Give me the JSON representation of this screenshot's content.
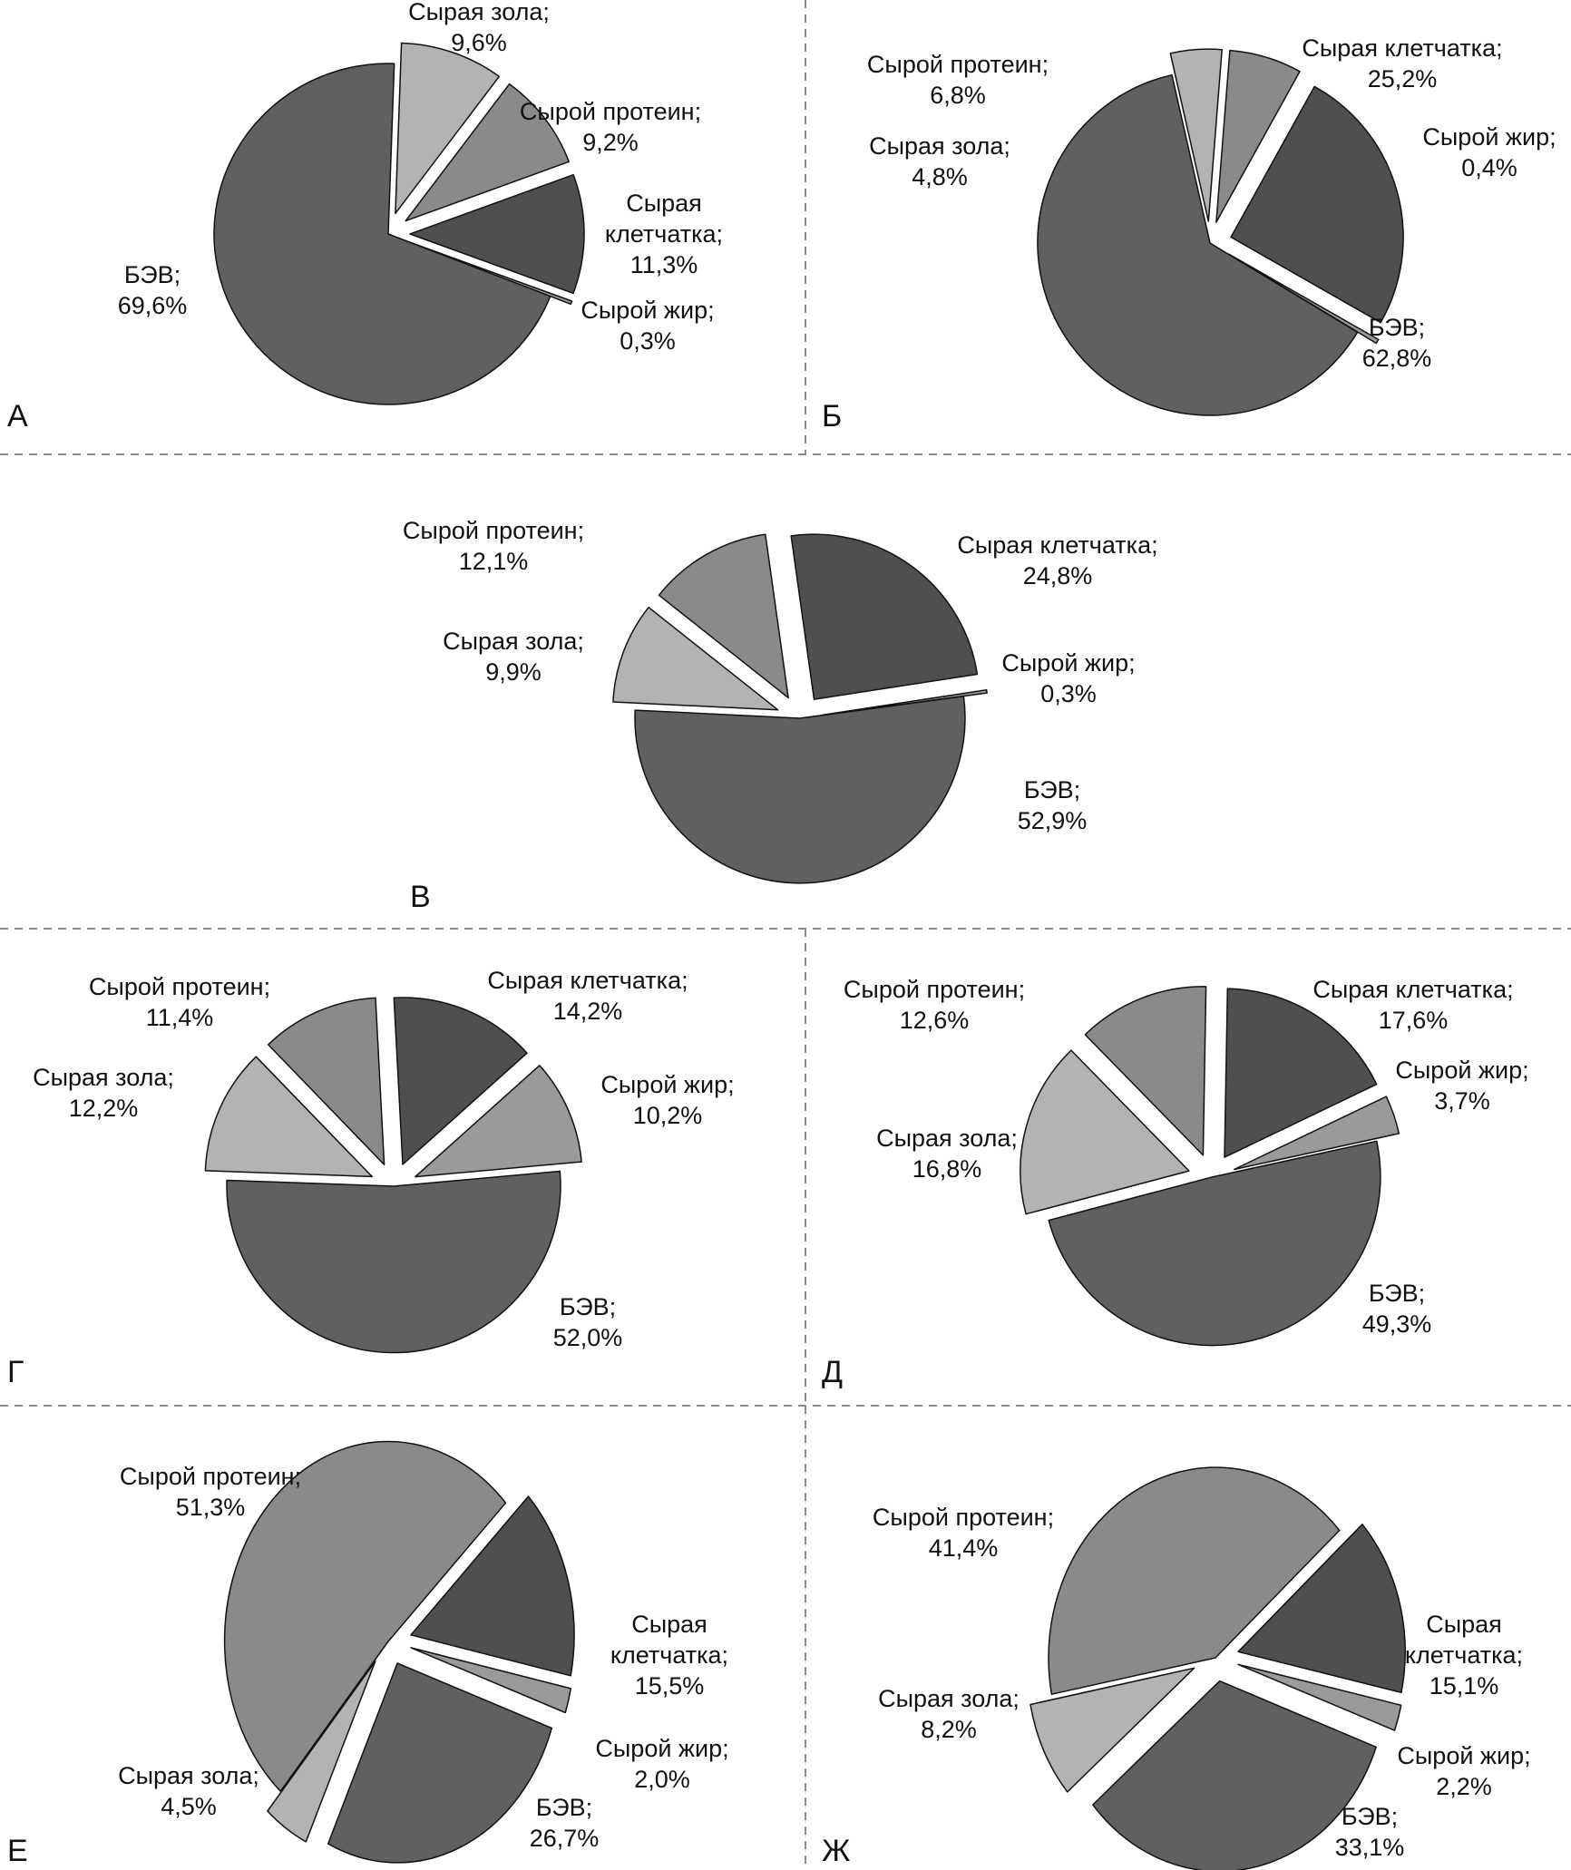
{
  "figure": {
    "panels": [
      "А",
      "Б",
      "В",
      "Г",
      "Д",
      "Е",
      "Ж"
    ]
  },
  "colors": {
    "БЭВ": "#606060",
    "Сырая клетчатка": "#4f4f4f",
    "Сырой протеин": "#8a8a8a",
    "Сырая зола": "#b3b3b3",
    "Сырой жир": "#9a9a9a",
    "Сырой жир (Г)": "#9a9a9a"
  },
  "chart_data": [
    {
      "type": "pie",
      "panel": "А",
      "title": "",
      "categories": [
        "Сырая зола",
        "Сырой протеин",
        "Сырая клетчатка",
        "Сырой жир",
        "БЭВ"
      ],
      "values": [
        9.6,
        9.2,
        11.3,
        0.3,
        69.6
      ],
      "labels": [
        [
          "Сырая зола;",
          "9,6%"
        ],
        [
          "Сырой протеин;",
          "9,2%"
        ],
        [
          "Сырая",
          "клетчатка;",
          "11,3%"
        ],
        [
          "Сырой жир;",
          "0,3%"
        ],
        [
          "БЭВ;",
          "69,6%"
        ]
      ],
      "exploded": [
        "Сырая зола",
        "Сырой протеин",
        "Сырая клетчатка",
        "Сырой жир"
      ]
    },
    {
      "type": "pie",
      "panel": "Б",
      "title": "",
      "categories": [
        "Сырая клетчатка",
        "Сырой жир",
        "БЭВ",
        "Сырая зола",
        "Сырой протеин"
      ],
      "values": [
        25.2,
        0.4,
        62.8,
        4.8,
        6.8
      ],
      "labels": [
        [
          "Сырая клетчатка;",
          "25,2%"
        ],
        [
          "Сырой жир;",
          "0,4%"
        ],
        [
          "БЭВ;",
          "62,8%"
        ],
        [
          "Сырая зола;",
          "4,8%"
        ],
        [
          "Сырой протеин;",
          "6,8%"
        ]
      ],
      "exploded": [
        "Сырая клетчатка",
        "Сырой жир",
        "Сырая зола",
        "Сырой протеин"
      ]
    },
    {
      "type": "pie",
      "panel": "В",
      "title": "",
      "categories": [
        "Сырая клетчатка",
        "Сырой жир",
        "БЭВ",
        "Сырая зола",
        "Сырой протеин"
      ],
      "values": [
        24.8,
        0.3,
        52.9,
        9.9,
        12.1
      ],
      "labels": [
        [
          "Сырая клетчатка;",
          "24,8%"
        ],
        [
          "Сырой жир;",
          "0,3%"
        ],
        [
          "БЭВ;",
          "52,9%"
        ],
        [
          "Сырая зола;",
          "9,9%"
        ],
        [
          "Сырой протеин;",
          "12,1%"
        ]
      ],
      "exploded": [
        "Сырая клетчатка",
        "Сырой жир",
        "Сырая зола",
        "Сырой протеин"
      ]
    },
    {
      "type": "pie",
      "panel": "Г",
      "title": "",
      "categories": [
        "Сырая клетчатка",
        "Сырой жир",
        "БЭВ",
        "Сырая зола",
        "Сырой протеин"
      ],
      "values": [
        14.2,
        10.2,
        52.0,
        12.2,
        11.4
      ],
      "labels": [
        [
          "Сырая клетчатка;",
          "14,2%"
        ],
        [
          "Сырой жир;",
          "10,2%"
        ],
        [
          "БЭВ;",
          "52,0%"
        ],
        [
          "Сырая зола;",
          "12,2%"
        ],
        [
          "Сырой протеин;",
          "11,4%"
        ]
      ],
      "exploded": [
        "Сырая клетчатка",
        "Сырой жир",
        "Сырая зола",
        "Сырой протеин"
      ]
    },
    {
      "type": "pie",
      "panel": "Д",
      "title": "",
      "categories": [
        "Сырая клетчатка",
        "Сырой жир",
        "БЭВ",
        "Сырая зола",
        "Сырой протеин"
      ],
      "values": [
        17.6,
        3.7,
        49.3,
        16.8,
        12.6
      ],
      "labels": [
        [
          "Сырая клетчатка;",
          "17,6%"
        ],
        [
          "Сырой жир;",
          "3,7%"
        ],
        [
          "БЭВ;",
          "49,3%"
        ],
        [
          "Сырая зола;",
          "16,8%"
        ],
        [
          "Сырой протеин;",
          "12,6%"
        ]
      ],
      "exploded": [
        "Сырая клетчатка",
        "Сырой жир",
        "Сырая зола",
        "Сырой протеин"
      ]
    },
    {
      "type": "pie",
      "panel": "Е",
      "title": "",
      "categories": [
        "Сырая клетчатка",
        "Сырой жир",
        "БЭВ",
        "Сырая зола",
        "Сырой протеин"
      ],
      "values": [
        15.5,
        2.0,
        26.7,
        4.5,
        51.3
      ],
      "labels": [
        [
          "Сырая",
          "клетчатка;",
          "15,5%"
        ],
        [
          "Сырой жир;",
          "2,0%"
        ],
        [
          "БЭВ;",
          "26,7%"
        ],
        [
          "Сырая зола;",
          "4,5%"
        ],
        [
          "Сырой протеин;",
          "51,3%"
        ]
      ],
      "exploded": [
        "Сырая клетчатка",
        "Сырой жир",
        "БЭВ",
        "Сырая зола"
      ]
    },
    {
      "type": "pie",
      "panel": "Ж",
      "title": "",
      "categories": [
        "Сырая клетчатка",
        "Сырой жир",
        "БЭВ",
        "Сырая зола",
        "Сырой протеин"
      ],
      "values": [
        15.1,
        2.2,
        33.1,
        8.2,
        41.4
      ],
      "labels": [
        [
          "Сырая",
          "клетчатка;",
          "15,1%"
        ],
        [
          "Сырой жир;",
          "2,2%"
        ],
        [
          "БЭВ;",
          "33,1%"
        ],
        [
          "Сырая зола;",
          "8,2%"
        ],
        [
          "Сырой протеин;",
          "41,4%"
        ]
      ],
      "exploded": [
        "Сырая клетчатка",
        "Сырой жир",
        "БЭВ",
        "Сырая зола"
      ]
    }
  ]
}
